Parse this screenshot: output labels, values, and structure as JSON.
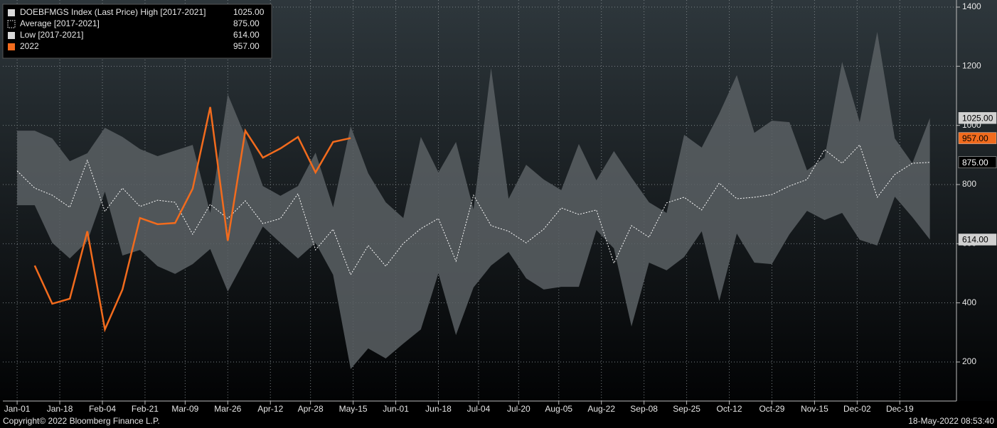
{
  "chart_data": {
    "type": "band-line",
    "x": [
      0,
      7,
      14,
      21,
      28,
      35,
      42,
      49,
      56,
      63,
      70,
      77,
      84,
      91,
      98,
      105,
      112,
      119,
      126,
      133,
      140,
      147,
      154,
      161,
      168,
      175,
      182,
      189,
      196,
      203,
      210,
      217,
      224,
      231,
      238,
      245,
      252,
      259,
      266,
      273,
      280,
      287,
      294,
      301,
      308,
      315,
      322,
      329,
      336,
      343,
      350,
      357,
      364
    ],
    "series": [
      {
        "name": "DOEBFMGS Index (Last Price) High [2017-2021]",
        "role": "high",
        "color": "#5b6064",
        "last_label": "1025.00",
        "values": [
          982,
          982,
          956,
          879,
          906,
          992,
          961,
          920,
          896,
          915,
          934,
          704,
          1105,
          963,
          795,
          762,
          795,
          908,
          723,
          997,
          838,
          740,
          687,
          961,
          841,
          944,
          716,
          1194,
          752,
          867,
          817,
          781,
          937,
          814,
          913,
          824,
          740,
          704,
          968,
          925,
          1040,
          1170,
          975,
          1016,
          1011,
          848,
          891,
          1215,
          1011,
          1316,
          956,
          872,
          1025
        ]
      },
      {
        "name": "Average  [2017-2021]",
        "role": "average",
        "color": "#ffffff",
        "last_label": "875.00",
        "values": [
          846,
          788,
          764,
          723,
          882,
          709,
          788,
          726,
          747,
          740,
          632,
          733,
          685,
          745,
          668,
          685,
          769,
          579,
          649,
          495,
          594,
          524,
          601,
          651,
          685,
          541,
          764,
          661,
          642,
          603,
          649,
          721,
          699,
          714,
          534,
          661,
          622,
          738,
          757,
          714,
          805,
          752,
          757,
          766,
          795,
          817,
          918,
          872,
          934,
          757,
          834,
          872,
          875
        ]
      },
      {
        "name": "Low  [2017-2021]",
        "role": "low",
        "color": "#5b6064",
        "last_label": "614.00",
        "values": [
          730,
          730,
          603,
          550,
          608,
          776,
          560,
          579,
          524,
          498,
          531,
          582,
          438,
          548,
          658,
          603,
          550,
          603,
          495,
          176,
          246,
          212,
          262,
          310,
          500,
          291,
          452,
          526,
          572,
          483,
          445,
          454,
          454,
          646,
          584,
          320,
          536,
          510,
          555,
          642,
          406,
          634,
          536,
          531,
          632,
          711,
          680,
          704,
          613,
          594,
          759,
          690,
          614
        ]
      },
      {
        "name": "2022",
        "role": "line",
        "color": "#f26b1d",
        "last_label": "957.00",
        "values": [
          null,
          526,
          397,
          414,
          642,
          310,
          445,
          687,
          666,
          670,
          786,
          1062,
          610,
          982,
          891,
          922,
          961,
          841,
          944,
          957,
          null,
          null,
          null,
          null,
          null,
          null,
          null,
          null,
          null,
          null,
          null,
          null,
          null,
          null,
          null,
          null,
          null,
          null,
          null,
          null,
          null,
          null,
          null,
          null,
          null,
          null,
          null,
          null,
          null,
          null,
          null,
          null,
          null
        ]
      }
    ],
    "xlim": [
      -5.7,
      374.6
    ],
    "xticks": [
      {
        "value": 0,
        "label": "Jan-01"
      },
      {
        "value": 17,
        "label": "Jan-18"
      },
      {
        "value": 34,
        "label": "Feb-04"
      },
      {
        "value": 51,
        "label": "Feb-21"
      },
      {
        "value": 67,
        "label": "Mar-09"
      },
      {
        "value": 84,
        "label": "Mar-26"
      },
      {
        "value": 101,
        "label": "Apr-12"
      },
      {
        "value": 117,
        "label": "Apr-28"
      },
      {
        "value": 134,
        "label": "May-15"
      },
      {
        "value": 151,
        "label": "Jun-01"
      },
      {
        "value": 168,
        "label": "Jun-18"
      },
      {
        "value": 184,
        "label": "Jul-04"
      },
      {
        "value": 200,
        "label": "Jul-20"
      },
      {
        "value": 216,
        "label": "Aug-05"
      },
      {
        "value": 233,
        "label": "Aug-22"
      },
      {
        "value": 250,
        "label": "Sep-08"
      },
      {
        "value": 267,
        "label": "Sep-25"
      },
      {
        "value": 284,
        "label": "Oct-12"
      },
      {
        "value": 301,
        "label": "Oct-29"
      },
      {
        "value": 318,
        "label": "Nov-15"
      },
      {
        "value": 335,
        "label": "Dec-02"
      },
      {
        "value": 352,
        "label": "Dec-19"
      }
    ],
    "ylim": [
      68,
      1424
    ],
    "yticks": [
      200,
      400,
      600,
      800,
      1000,
      1200,
      1400
    ],
    "grid": true,
    "legend": "top-left",
    "footer_left": "Copyright© 2022 Bloomberg Finance L.P.",
    "footer_right": "18-May-2022 08:53:40"
  }
}
